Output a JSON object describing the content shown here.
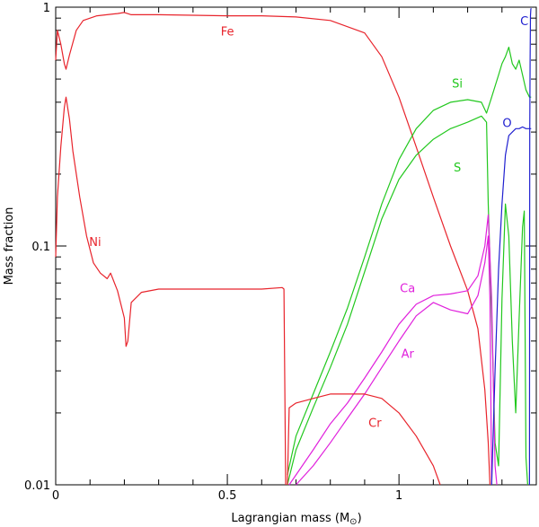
{
  "chart_data": {
    "type": "line",
    "title": "",
    "xlabel": "Lagrangian mass (M",
    "xlabel_sub": "⊙",
    "xlabel_close": ")",
    "ylabel": "Mass fraction",
    "xlim": [
      0,
      1.4
    ],
    "ylim": [
      0.01,
      1
    ],
    "yscale": "log",
    "xticks": [
      {
        "value": 0,
        "label": "0"
      },
      {
        "value": 0.5,
        "label": "0.5"
      },
      {
        "value": 1,
        "label": "1"
      }
    ],
    "yticks": [
      {
        "value": 0.01,
        "label": "0.01"
      },
      {
        "value": 0.1,
        "label": "0.1"
      },
      {
        "value": 1,
        "label": "1"
      }
    ],
    "grid": false,
    "legend": "none",
    "series": [
      {
        "name": "Fe",
        "color": "#e8242c",
        "label_at": [
          0.5,
          0.76
        ],
        "points": [
          [
            0,
            0.6
          ],
          [
            0.005,
            0.8
          ],
          [
            0.015,
            0.7
          ],
          [
            0.025,
            0.58
          ],
          [
            0.03,
            0.55
          ],
          [
            0.04,
            0.63
          ],
          [
            0.06,
            0.8
          ],
          [
            0.08,
            0.88
          ],
          [
            0.12,
            0.92
          ],
          [
            0.18,
            0.94
          ],
          [
            0.2,
            0.95
          ],
          [
            0.22,
            0.93
          ],
          [
            0.3,
            0.93
          ],
          [
            0.5,
            0.92
          ],
          [
            0.6,
            0.92
          ],
          [
            0.7,
            0.91
          ],
          [
            0.8,
            0.88
          ],
          [
            0.9,
            0.78
          ],
          [
            0.95,
            0.62
          ],
          [
            1.0,
            0.42
          ],
          [
            1.05,
            0.26
          ],
          [
            1.1,
            0.16
          ],
          [
            1.15,
            0.1
          ],
          [
            1.2,
            0.065
          ],
          [
            1.23,
            0.045
          ],
          [
            1.25,
            0.025
          ],
          [
            1.26,
            0.015
          ],
          [
            1.265,
            0.01
          ]
        ]
      },
      {
        "name": "Ni",
        "color": "#e8242c",
        "label_at": [
          0.115,
          0.1
        ],
        "points": [
          [
            0,
            0.09
          ],
          [
            0.005,
            0.16
          ],
          [
            0.015,
            0.26
          ],
          [
            0.025,
            0.38
          ],
          [
            0.03,
            0.42
          ],
          [
            0.04,
            0.34
          ],
          [
            0.05,
            0.25
          ],
          [
            0.07,
            0.16
          ],
          [
            0.09,
            0.11
          ],
          [
            0.11,
            0.085
          ],
          [
            0.13,
            0.077
          ],
          [
            0.15,
            0.073
          ],
          [
            0.16,
            0.077
          ],
          [
            0.18,
            0.065
          ],
          [
            0.2,
            0.05
          ],
          [
            0.205,
            0.038
          ],
          [
            0.21,
            0.04
          ],
          [
            0.22,
            0.058
          ],
          [
            0.25,
            0.064
          ],
          [
            0.3,
            0.066
          ],
          [
            0.4,
            0.066
          ],
          [
            0.5,
            0.066
          ],
          [
            0.6,
            0.066
          ],
          [
            0.66,
            0.067
          ],
          [
            0.665,
            0.066
          ],
          [
            0.67,
            0.01
          ]
        ]
      },
      {
        "name": "Si",
        "color": "#22c81e",
        "label_at": [
          1.17,
          0.46
        ],
        "points": [
          [
            0.675,
            0.011
          ],
          [
            0.7,
            0.016
          ],
          [
            0.75,
            0.024
          ],
          [
            0.8,
            0.036
          ],
          [
            0.85,
            0.055
          ],
          [
            0.9,
            0.09
          ],
          [
            0.95,
            0.15
          ],
          [
            1.0,
            0.23
          ],
          [
            1.05,
            0.31
          ],
          [
            1.1,
            0.37
          ],
          [
            1.15,
            0.4
          ],
          [
            1.2,
            0.41
          ],
          [
            1.24,
            0.4
          ],
          [
            1.255,
            0.36
          ],
          [
            1.27,
            0.42
          ],
          [
            1.29,
            0.52
          ],
          [
            1.3,
            0.58
          ],
          [
            1.31,
            0.62
          ],
          [
            1.32,
            0.68
          ],
          [
            1.33,
            0.58
          ],
          [
            1.34,
            0.55
          ],
          [
            1.35,
            0.6
          ],
          [
            1.36,
            0.52
          ],
          [
            1.37,
            0.45
          ],
          [
            1.38,
            0.42
          ],
          [
            1.385,
            0.42
          ]
        ]
      },
      {
        "name": "S",
        "color": "#22c81e",
        "label_at": [
          1.17,
          0.205
        ],
        "points": [
          [
            0.675,
            0.01
          ],
          [
            0.7,
            0.014
          ],
          [
            0.75,
            0.021
          ],
          [
            0.8,
            0.031
          ],
          [
            0.85,
            0.047
          ],
          [
            0.9,
            0.078
          ],
          [
            0.95,
            0.13
          ],
          [
            1.0,
            0.19
          ],
          [
            1.05,
            0.24
          ],
          [
            1.1,
            0.28
          ],
          [
            1.15,
            0.31
          ],
          [
            1.2,
            0.33
          ],
          [
            1.24,
            0.35
          ],
          [
            1.255,
            0.33
          ],
          [
            1.26,
            0.15
          ],
          [
            1.27,
            0.05
          ],
          [
            1.28,
            0.015
          ],
          [
            1.29,
            0.012
          ],
          [
            1.3,
            0.06
          ],
          [
            1.31,
            0.15
          ],
          [
            1.32,
            0.11
          ],
          [
            1.33,
            0.04
          ],
          [
            1.34,
            0.02
          ],
          [
            1.35,
            0.05
          ],
          [
            1.36,
            0.12
          ],
          [
            1.365,
            0.14
          ],
          [
            1.37,
            0.013
          ],
          [
            1.375,
            0.01
          ]
        ]
      },
      {
        "name": "Ca",
        "color": "#e020dc",
        "label_at": [
          1.025,
          0.064
        ],
        "points": [
          [
            0.68,
            0.01
          ],
          [
            0.7,
            0.011
          ],
          [
            0.75,
            0.014
          ],
          [
            0.8,
            0.018
          ],
          [
            0.85,
            0.022
          ],
          [
            0.9,
            0.028
          ],
          [
            0.95,
            0.036
          ],
          [
            1.0,
            0.047
          ],
          [
            1.05,
            0.057
          ],
          [
            1.1,
            0.062
          ],
          [
            1.15,
            0.063
          ],
          [
            1.2,
            0.065
          ],
          [
            1.23,
            0.075
          ],
          [
            1.25,
            0.1
          ],
          [
            1.26,
            0.135
          ],
          [
            1.27,
            0.06
          ],
          [
            1.28,
            0.012
          ],
          [
            1.285,
            0.01
          ]
        ]
      },
      {
        "name": "Ar",
        "color": "#e020dc",
        "label_at": [
          1.025,
          0.034
        ],
        "points": [
          [
            0.7,
            0.01
          ],
          [
            0.75,
            0.012
          ],
          [
            0.8,
            0.015
          ],
          [
            0.85,
            0.019
          ],
          [
            0.9,
            0.024
          ],
          [
            0.95,
            0.031
          ],
          [
            1.0,
            0.04
          ],
          [
            1.05,
            0.051
          ],
          [
            1.1,
            0.058
          ],
          [
            1.15,
            0.054
          ],
          [
            1.2,
            0.052
          ],
          [
            1.23,
            0.062
          ],
          [
            1.25,
            0.085
          ],
          [
            1.26,
            0.11
          ],
          [
            1.265,
            0.06
          ],
          [
            1.27,
            0.01
          ]
        ]
      },
      {
        "name": "Cr",
        "color": "#e8242c",
        "label_at": [
          0.93,
          0.0175
        ],
        "points": [
          [
            0.675,
            0.01
          ],
          [
            0.68,
            0.021
          ],
          [
            0.7,
            0.022
          ],
          [
            0.75,
            0.023
          ],
          [
            0.8,
            0.024
          ],
          [
            0.85,
            0.024
          ],
          [
            0.9,
            0.024
          ],
          [
            0.95,
            0.023
          ],
          [
            1.0,
            0.02
          ],
          [
            1.05,
            0.016
          ],
          [
            1.1,
            0.012
          ],
          [
            1.12,
            0.01
          ]
        ]
      },
      {
        "name": "O",
        "color": "#2020d0",
        "label_at": [
          1.315,
          0.315
        ],
        "points": [
          [
            1.27,
            0.01
          ],
          [
            1.28,
            0.03
          ],
          [
            1.29,
            0.08
          ],
          [
            1.3,
            0.15
          ],
          [
            1.31,
            0.24
          ],
          [
            1.32,
            0.29
          ],
          [
            1.33,
            0.3
          ],
          [
            1.34,
            0.31
          ],
          [
            1.35,
            0.31
          ],
          [
            1.36,
            0.315
          ],
          [
            1.37,
            0.31
          ],
          [
            1.38,
            0.31
          ],
          [
            1.385,
            0.31
          ]
        ]
      },
      {
        "name": "C",
        "color": "#2020d0",
        "label_at": [
          1.365,
          0.84
        ],
        "points": [
          [
            1.38,
            0.01
          ],
          [
            1.381,
            0.3
          ],
          [
            1.382,
            0.6
          ],
          [
            1.383,
            0.92
          ],
          [
            1.384,
            0.98
          ],
          [
            1.385,
            0.99
          ]
        ]
      }
    ]
  }
}
